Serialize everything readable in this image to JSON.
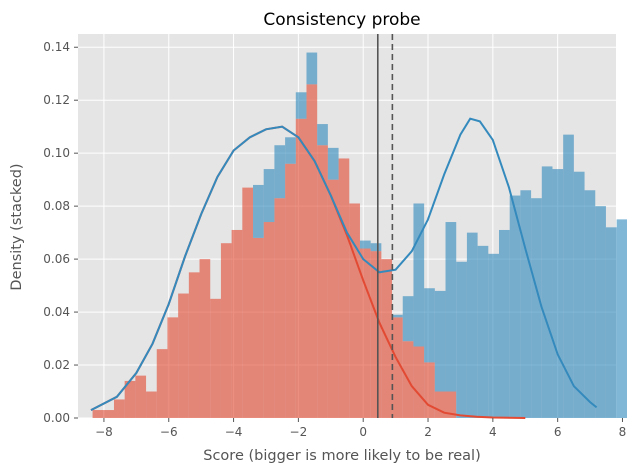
{
  "chart_data": {
    "type": "histogram",
    "title": "Consistency probe",
    "xlabel": "Score (bigger is more likely to be real)",
    "ylabel": "Density (stacked)",
    "xlim": [
      -8.8,
      7.8
    ],
    "ylim": [
      0,
      0.145
    ],
    "x_ticks": [
      -8,
      -6,
      -4,
      -2,
      0,
      2,
      4,
      6,
      8
    ],
    "y_ticks": [
      0.0,
      0.02,
      0.04,
      0.06,
      0.08,
      0.1,
      0.12,
      0.14
    ],
    "x_tick_labels": [
      "−8",
      "−6",
      "−4",
      "−2",
      "0",
      "2",
      "4",
      "6",
      "8"
    ],
    "y_tick_labels": [
      "0.00",
      "0.02",
      "0.04",
      "0.06",
      "0.08",
      "0.10",
      "0.12",
      "0.14"
    ],
    "grid": true,
    "background": "#e5e5e5",
    "bin_start": -8.35,
    "bin_width": 0.33,
    "series": [
      {
        "color": "#e24a33",
        "opacity": 0.62,
        "values": [
          0.003,
          0.003,
          0.007,
          0.014,
          0.016,
          0.01,
          0.026,
          0.038,
          0.047,
          0.055,
          0.06,
          0.045,
          0.066,
          0.071,
          0.087,
          0.068,
          0.074,
          0.083,
          0.096,
          0.113,
          0.126,
          0.103,
          0.09,
          0.098,
          0.081,
          0.064,
          0.063,
          0.06,
          0.038,
          0.029,
          0.027,
          0.021,
          0.01,
          0.01,
          0.0,
          0.0,
          0.0,
          0.0,
          0.0,
          0.0,
          0.0,
          0.0,
          0.0,
          0.0,
          0.0,
          0.0,
          0.0,
          0.0,
          0.0,
          0.0
        ]
      },
      {
        "color": "#348abd",
        "opacity": 0.62,
        "values": [
          0.0,
          0.0,
          0.0,
          0.0,
          0.0,
          0.0,
          0.0,
          0.0,
          0.0,
          0.0,
          0.0,
          0.0,
          0.0,
          0.0,
          0.0,
          0.02,
          0.02,
          0.02,
          0.01,
          0.01,
          0.012,
          0.008,
          0.012,
          0.0,
          0.0,
          0.003,
          0.003,
          0.0,
          0.001,
          0.017,
          0.054,
          0.028,
          0.038,
          0.064,
          0.059,
          0.07,
          0.065,
          0.062,
          0.071,
          0.084,
          0.086,
          0.083,
          0.095,
          0.094,
          0.107,
          0.093,
          0.086,
          0.08,
          0.072,
          0.075
        ]
      }
    ],
    "kde_lines": [
      {
        "color": "#e24a33",
        "points": [
          [
            -8.4,
            0.003
          ],
          [
            -7.6,
            0.008
          ],
          [
            -7.0,
            0.017
          ],
          [
            -6.5,
            0.028
          ],
          [
            -6.0,
            0.043
          ],
          [
            -5.5,
            0.061
          ],
          [
            -5.0,
            0.077
          ],
          [
            -4.5,
            0.091
          ],
          [
            -4.0,
            0.101
          ],
          [
            -3.5,
            0.106
          ],
          [
            -3.0,
            0.109
          ],
          [
            -2.5,
            0.11
          ],
          [
            -2.0,
            0.106
          ],
          [
            -1.5,
            0.097
          ],
          [
            -1.0,
            0.084
          ],
          [
            -0.5,
            0.069
          ],
          [
            0.0,
            0.052
          ],
          [
            0.5,
            0.036
          ],
          [
            1.0,
            0.023
          ],
          [
            1.5,
            0.012
          ],
          [
            2.0,
            0.005
          ],
          [
            2.5,
            0.002
          ],
          [
            3.0,
            0.001
          ],
          [
            3.5,
            0.0005
          ],
          [
            4.0,
            0.0002
          ],
          [
            5.0,
            0.0
          ]
        ]
      },
      {
        "color": "#348abd",
        "points": [
          [
            -8.4,
            0.003
          ],
          [
            -7.6,
            0.008
          ],
          [
            -7.0,
            0.017
          ],
          [
            -6.5,
            0.028
          ],
          [
            -6.0,
            0.043
          ],
          [
            -5.5,
            0.061
          ],
          [
            -5.0,
            0.077
          ],
          [
            -4.5,
            0.091
          ],
          [
            -4.0,
            0.101
          ],
          [
            -3.5,
            0.106
          ],
          [
            -3.0,
            0.109
          ],
          [
            -2.5,
            0.11
          ],
          [
            -2.0,
            0.106
          ],
          [
            -1.5,
            0.097
          ],
          [
            -1.0,
            0.084
          ],
          [
            -0.5,
            0.07
          ],
          [
            0.0,
            0.06
          ],
          [
            0.5,
            0.055
          ],
          [
            1.0,
            0.056
          ],
          [
            1.5,
            0.063
          ],
          [
            2.0,
            0.075
          ],
          [
            2.5,
            0.092
          ],
          [
            3.0,
            0.107
          ],
          [
            3.3,
            0.113
          ],
          [
            3.6,
            0.112
          ],
          [
            4.0,
            0.105
          ],
          [
            4.5,
            0.087
          ],
          [
            5.0,
            0.064
          ],
          [
            5.5,
            0.042
          ],
          [
            6.0,
            0.024
          ],
          [
            6.5,
            0.012
          ],
          [
            7.0,
            0.006
          ],
          [
            7.2,
            0.004
          ]
        ]
      }
    ],
    "vlines": [
      {
        "x": 0.45,
        "style": "solid",
        "color": "#555555"
      },
      {
        "x": 0.9,
        "style": "dashed",
        "color": "#555555"
      }
    ]
  }
}
